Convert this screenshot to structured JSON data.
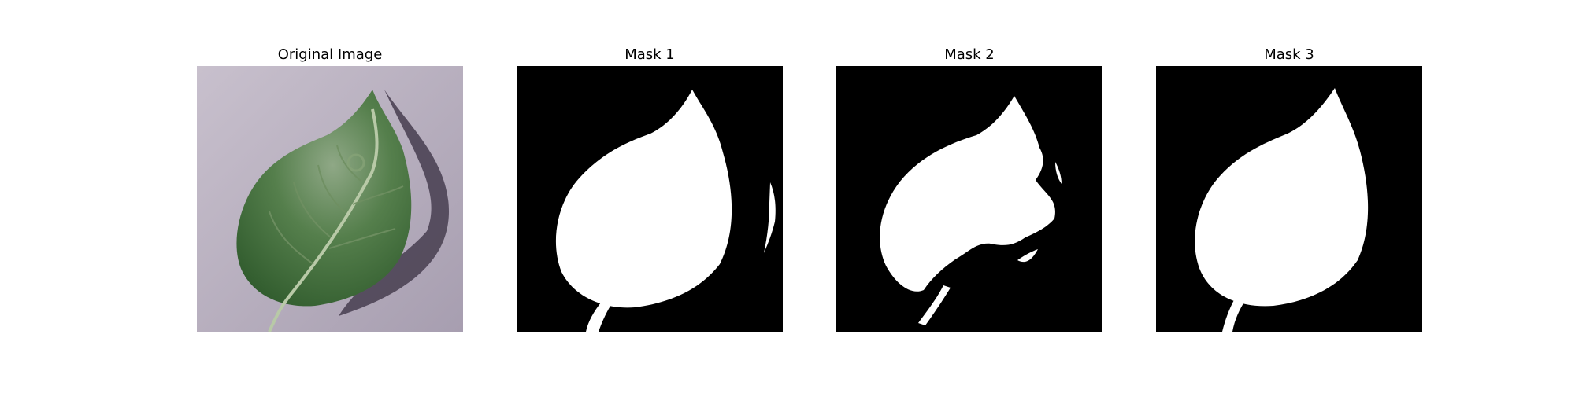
{
  "panels": [
    {
      "title": "Original Image",
      "kind": "photo"
    },
    {
      "title": "Mask 1",
      "kind": "mask"
    },
    {
      "title": "Mask 2",
      "kind": "mask"
    },
    {
      "title": "Mask 3",
      "kind": "mask"
    }
  ],
  "colors": {
    "background": "#ffffff",
    "mask_bg": "#000000",
    "mask_fg": "#ffffff",
    "photo_bg": "#b7aebb",
    "leaf": "#3f6a38"
  }
}
